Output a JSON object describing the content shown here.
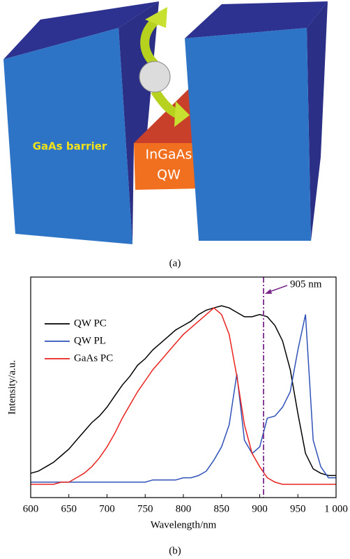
{
  "diagram": {
    "barrier_label": "GaAs barrier",
    "qw_label_1": "InGaAs",
    "qw_label_2": "QW",
    "caption": "(a)"
  },
  "chart_data": {
    "type": "line",
    "xlabel": "Wavelength/nm",
    "ylabel": "Intensity/a.u.",
    "caption": "(b)",
    "x": [
      600,
      610,
      620,
      630,
      640,
      650,
      660,
      670,
      680,
      690,
      700,
      710,
      720,
      730,
      740,
      750,
      760,
      770,
      780,
      790,
      800,
      810,
      820,
      830,
      840,
      850,
      860,
      870,
      880,
      890,
      900,
      910,
      920,
      930,
      940,
      950,
      960,
      970,
      980,
      990,
      1000
    ],
    "series": [
      {
        "name": "QW PC",
        "color": "#000000",
        "values": [
          0.11,
          0.12,
          0.14,
          0.16,
          0.19,
          0.22,
          0.26,
          0.3,
          0.34,
          0.37,
          0.41,
          0.46,
          0.51,
          0.55,
          0.6,
          0.63,
          0.67,
          0.7,
          0.73,
          0.76,
          0.78,
          0.8,
          0.83,
          0.85,
          0.86,
          0.87,
          0.86,
          0.84,
          0.82,
          0.82,
          0.83,
          0.82,
          0.78,
          0.71,
          0.58,
          0.38,
          0.2,
          0.13,
          0.11,
          0.1,
          0.1
        ]
      },
      {
        "name": "QW PL",
        "color": "#2f52b8",
        "values": [
          0.07,
          0.07,
          0.07,
          0.07,
          0.07,
          0.07,
          0.07,
          0.07,
          0.07,
          0.07,
          0.07,
          0.07,
          0.07,
          0.07,
          0.07,
          0.07,
          0.08,
          0.08,
          0.08,
          0.08,
          0.09,
          0.09,
          0.1,
          0.12,
          0.17,
          0.23,
          0.33,
          0.56,
          0.26,
          0.2,
          0.23,
          0.36,
          0.37,
          0.41,
          0.48,
          0.67,
          0.83,
          0.26,
          0.14,
          0.09,
          0.09
        ]
      },
      {
        "name": "GaAs PC",
        "color": "#e8231e",
        "values": [
          0.06,
          0.06,
          0.06,
          0.06,
          0.07,
          0.07,
          0.09,
          0.11,
          0.14,
          0.18,
          0.23,
          0.29,
          0.36,
          0.42,
          0.48,
          0.53,
          0.58,
          0.62,
          0.66,
          0.7,
          0.74,
          0.77,
          0.8,
          0.83,
          0.86,
          0.83,
          0.74,
          0.55,
          0.33,
          0.2,
          0.14,
          0.09,
          0.07,
          0.06,
          0.06,
          0.06,
          0.06,
          0.06,
          0.06,
          0.06,
          0.06
        ]
      }
    ],
    "xlim": [
      600,
      1000
    ],
    "xticks": [
      600,
      650,
      700,
      750,
      800,
      850,
      900,
      950,
      {
        "value": 1000,
        "label": "1 000"
      }
    ],
    "ylim": [
      0,
      1
    ],
    "legend": "upper left",
    "marker_line": {
      "x": 905,
      "label": "905 nm",
      "color": "#7b2a8c"
    }
  }
}
